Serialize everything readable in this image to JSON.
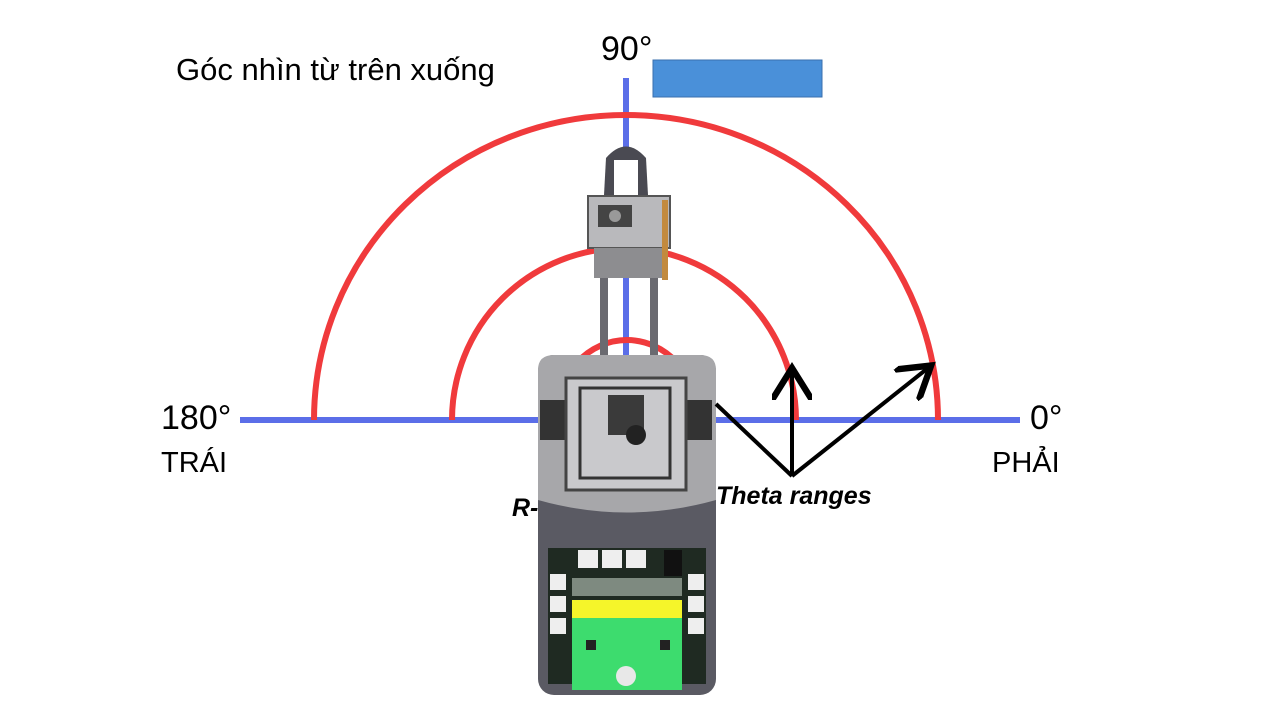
{
  "title": "Góc nhìn từ trên xuống",
  "angles": {
    "top": "90°",
    "left": "180°",
    "right": "0°"
  },
  "sides": {
    "left": "TRÁI",
    "right": "PHẢI"
  },
  "annotations": {
    "theta": "Theta ranges",
    "robot_prefix": "R-"
  },
  "colors": {
    "axis": "#5b6ee8",
    "arc": "#f03a3c",
    "arrow": "#000000",
    "label_box": "#4a90d9",
    "robot_body": "#5a5a63",
    "robot_top": "#a7a7aa",
    "board_dark": "#1f2a22",
    "board_yellow": "#f5f52a",
    "board_green": "#3ddc6e"
  },
  "icons": [
    "robot-arm-icon",
    "controller-board-icon",
    "arrow-icon"
  ]
}
